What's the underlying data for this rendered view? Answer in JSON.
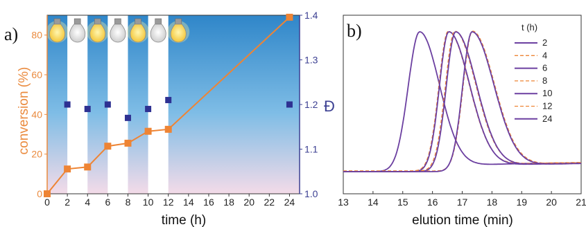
{
  "panel_a_label": "a)",
  "panel_b_label": "b)",
  "chart_data": [
    {
      "type": "line",
      "panel": "a",
      "xlabel": "time (h)",
      "ylabel": "conversion (%)",
      "y2label": "Đ",
      "xlim": [
        0,
        25
      ],
      "ylim": [
        0,
        90
      ],
      "y2lim": [
        1.0,
        1.4
      ],
      "x_ticks": [
        "0",
        "2",
        "4",
        "6",
        "8",
        "10",
        "12",
        "14",
        "16",
        "18",
        "20",
        "22",
        "24"
      ],
      "y_ticks": [
        "0",
        "20",
        "40",
        "60",
        "80"
      ],
      "y2_ticks": [
        "1.0",
        "1.1",
        "1.2",
        "1.3",
        "1.4"
      ],
      "light_on_intervals": [
        [
          0,
          2
        ],
        [
          4,
          6
        ],
        [
          8,
          10
        ],
        [
          12,
          25
        ]
      ],
      "light_icons": [
        "on",
        "off",
        "on",
        "off",
        "on",
        "off",
        "on"
      ],
      "series": [
        {
          "axis": "left",
          "color": "#ee8434",
          "marker": "square",
          "x": [
            0,
            2,
            4,
            6,
            8,
            10,
            12,
            24
          ],
          "y": [
            0,
            12.5,
            13.5,
            24,
            25.5,
            31.5,
            32.5,
            89
          ]
        },
        {
          "axis": "right",
          "color": "#2e3192",
          "marker": "square",
          "x": [
            2,
            4,
            6,
            8,
            10,
            12,
            24
          ],
          "y": [
            1.2,
            1.19,
            1.2,
            1.17,
            1.19,
            1.21,
            1.2
          ]
        }
      ]
    },
    {
      "type": "line",
      "panel": "b",
      "xlabel": "elution time (min)",
      "xlim": [
        13,
        21
      ],
      "x_ticks": [
        "13",
        "14",
        "15",
        "16",
        "17",
        "18",
        "19",
        "20",
        "21"
      ],
      "legend_title": "t (h)",
      "legend_position": "top-right",
      "series": [
        {
          "name": "2",
          "color": "#6b3fa0",
          "dash": "solid",
          "peak": 15.57,
          "width_left": 0.55,
          "width_right": 0.95
        },
        {
          "name": "4",
          "color": "#ee8434",
          "dash": "dashed",
          "peak": 16.53,
          "width_left": 0.45,
          "width_right": 1.0
        },
        {
          "name": "6",
          "color": "#6b3fa0",
          "dash": "solid",
          "peak": 16.55,
          "width_left": 0.45,
          "width_right": 1.0
        },
        {
          "name": "8",
          "color": "#ee8434",
          "dash": "dashed",
          "peak": 16.75,
          "width_left": 0.45,
          "width_right": 1.0
        },
        {
          "name": "10",
          "color": "#6b3fa0",
          "dash": "solid",
          "peak": 16.78,
          "width_left": 0.45,
          "width_right": 1.0
        },
        {
          "name": "12",
          "color": "#ee8434",
          "dash": "dashed",
          "peak": 17.35,
          "width_left": 0.45,
          "width_right": 1.05
        },
        {
          "name": "24",
          "color": "#6b3fa0",
          "dash": "solid",
          "peak": 17.33,
          "width_left": 0.45,
          "width_right": 1.05
        }
      ]
    }
  ]
}
